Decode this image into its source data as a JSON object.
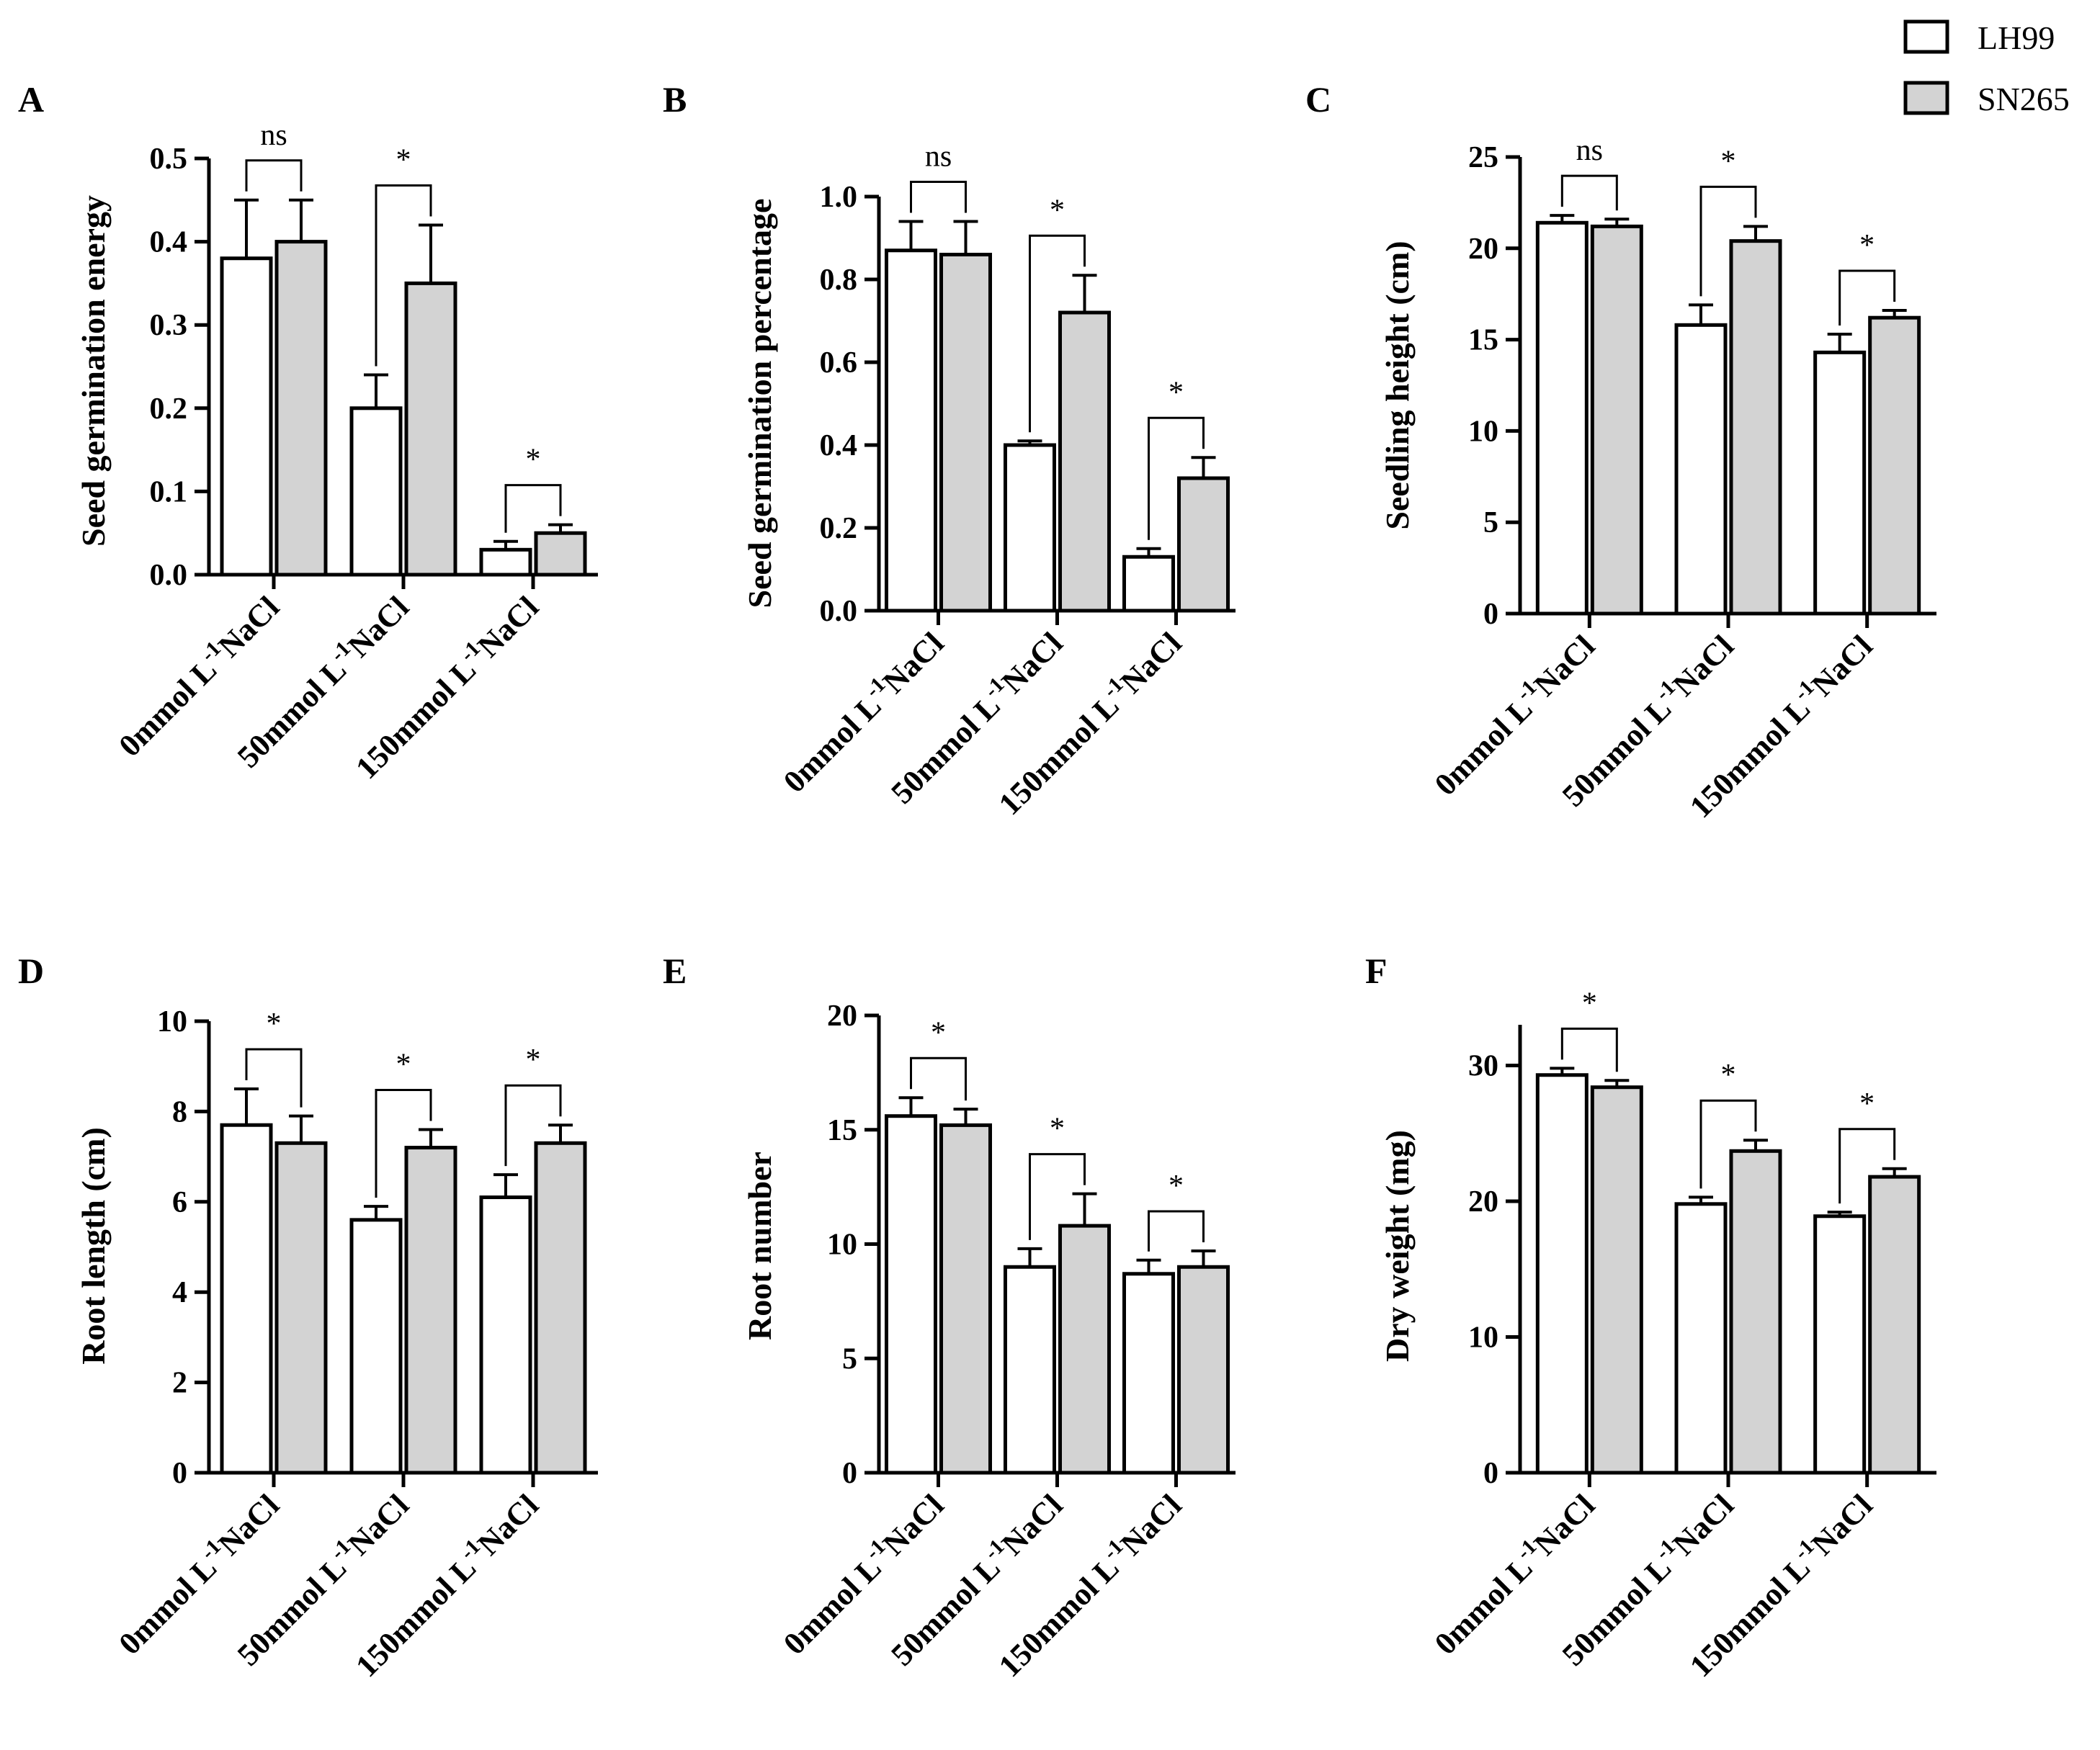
{
  "legend": {
    "series": [
      {
        "name": "LH99",
        "color": "#ffffff"
      },
      {
        "name": "SN265",
        "color": "#d3d3d3"
      }
    ]
  },
  "chart_data": [
    {
      "panel": "A",
      "type": "bar",
      "title": "",
      "ylabel": "Seed germination energy",
      "categories": [
        "0mmol L^-1NaCl",
        "50mmol L^-1NaCl",
        "150mmol L^-1NaCl"
      ],
      "ylim": [
        0,
        0.5
      ],
      "yticks": [
        0.0,
        0.1,
        0.2,
        0.3,
        0.4,
        0.5
      ],
      "ytick_labels": [
        "0.0",
        "0.1",
        "0.2",
        "0.3",
        "0.4",
        "0.5"
      ],
      "series": [
        {
          "name": "LH99",
          "values": [
            0.38,
            0.2,
            0.03
          ],
          "errors": [
            0.07,
            0.04,
            0.01
          ]
        },
        {
          "name": "SN265",
          "values": [
            0.4,
            0.35,
            0.05
          ],
          "errors": [
            0.05,
            0.07,
            0.01
          ]
        }
      ],
      "significance": [
        "ns",
        "*",
        "*"
      ]
    },
    {
      "panel": "B",
      "type": "bar",
      "title": "",
      "ylabel": "Seed germination percentage",
      "categories": [
        "0mmol L^-1NaCl",
        "50mmol L^-1NaCl",
        "150mmol L^-1NaCl"
      ],
      "ylim": [
        0,
        1.0
      ],
      "yticks": [
        0.0,
        0.2,
        0.4,
        0.6,
        0.8,
        1.0
      ],
      "ytick_labels": [
        "0.0",
        "0.2",
        "0.4",
        "0.6",
        "0.8",
        "1.0"
      ],
      "series": [
        {
          "name": "LH99",
          "values": [
            0.87,
            0.4,
            0.13
          ],
          "errors": [
            0.07,
            0.01,
            0.02
          ]
        },
        {
          "name": "SN265",
          "values": [
            0.86,
            0.72,
            0.32
          ],
          "errors": [
            0.08,
            0.09,
            0.05
          ]
        }
      ],
      "significance": [
        "ns",
        "*",
        "*"
      ]
    },
    {
      "panel": "C",
      "type": "bar",
      "title": "",
      "ylabel": "Seedling height (cm)",
      "categories": [
        "0mmol L^-1NaCl",
        "50mmol L^-1NaCl",
        "150mmol L^-1NaCl"
      ],
      "ylim": [
        0,
        25
      ],
      "yticks": [
        0,
        5,
        10,
        15,
        20,
        25
      ],
      "ytick_labels": [
        "0",
        "5",
        "10",
        "15",
        "20",
        "25"
      ],
      "series": [
        {
          "name": "LH99",
          "values": [
            21.4,
            15.8,
            14.3
          ],
          "errors": [
            0.4,
            1.1,
            1.0
          ]
        },
        {
          "name": "SN265",
          "values": [
            21.2,
            20.4,
            16.2
          ],
          "errors": [
            0.4,
            0.8,
            0.4
          ]
        }
      ],
      "significance": [
        "ns",
        "*",
        "*"
      ]
    },
    {
      "panel": "D",
      "type": "bar",
      "title": "",
      "ylabel": "Root length (cm)",
      "categories": [
        "0mmol L^-1NaCl",
        "50mmol L^-1NaCl",
        "150mmol L^-1NaCl"
      ],
      "ylim": [
        0,
        10
      ],
      "yticks": [
        0,
        2,
        4,
        6,
        8,
        10
      ],
      "ytick_labels": [
        "0",
        "2",
        "4",
        "6",
        "8",
        "10"
      ],
      "series": [
        {
          "name": "LH99",
          "values": [
            7.7,
            5.6,
            6.1
          ],
          "errors": [
            0.8,
            0.3,
            0.5
          ]
        },
        {
          "name": "SN265",
          "values": [
            7.3,
            7.2,
            7.3
          ],
          "errors": [
            0.6,
            0.4,
            0.4
          ]
        }
      ],
      "significance": [
        "*",
        "*",
        "*"
      ]
    },
    {
      "panel": "E",
      "type": "bar",
      "title": "",
      "ylabel": "Root number",
      "categories": [
        "0mmol L^-1NaCl",
        "50mmol L^-1NaCl",
        "150mmol L^-1NaCl"
      ],
      "ylim": [
        0,
        20
      ],
      "yticks": [
        0,
        5,
        10,
        15,
        20
      ],
      "ytick_labels": [
        "0",
        "5",
        "10",
        "15",
        "20"
      ],
      "series": [
        {
          "name": "LH99",
          "values": [
            15.6,
            9.0,
            8.7
          ],
          "errors": [
            0.8,
            0.8,
            0.6
          ]
        },
        {
          "name": "SN265",
          "values": [
            15.2,
            10.8,
            9.0
          ],
          "errors": [
            0.7,
            1.4,
            0.7
          ]
        }
      ],
      "significance": [
        "*",
        "*",
        "*"
      ]
    },
    {
      "panel": "F",
      "type": "bar",
      "title": "",
      "ylabel": "Dry weight (mg)",
      "categories": [
        "0mmol L^-1NaCl",
        "50mmol L^-1NaCl",
        "150mmol L^-1NaCl"
      ],
      "ylim": [
        0,
        33
      ],
      "yticks": [
        0,
        10,
        20,
        30
      ],
      "ytick_labels": [
        "0",
        "10",
        "20",
        "30"
      ],
      "series": [
        {
          "name": "LH99",
          "values": [
            29.3,
            19.8,
            18.9
          ],
          "errors": [
            0.5,
            0.5,
            0.3
          ]
        },
        {
          "name": "SN265",
          "values": [
            28.4,
            23.7,
            21.8
          ],
          "errors": [
            0.5,
            0.8,
            0.6
          ]
        }
      ],
      "significance": [
        "*",
        "*",
        "*"
      ]
    }
  ]
}
